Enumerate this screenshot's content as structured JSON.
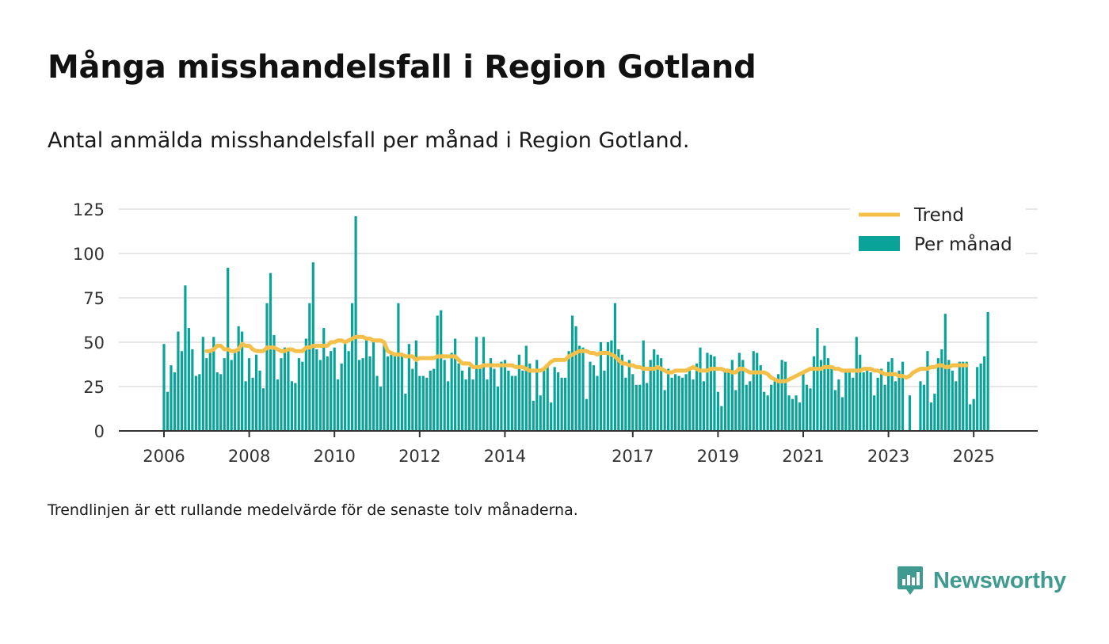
{
  "title": "Många misshandelsfall i Region Gotland",
  "subtitle": "Antal anmälda misshandelsfall per månad i Region Gotland.",
  "note": "Trendlinjen är ett rullande medelvärde för de senaste tolv månaderna.",
  "brand": "Newsworthy",
  "colors": {
    "bars": "#0aa39a",
    "trend": "#f5c04a",
    "axis": "#333333",
    "grid": "#dddddd"
  },
  "chart_data": {
    "type": "bar",
    "legend_position": "top-right",
    "grid": true,
    "ylim": [
      0,
      125
    ],
    "y_ticks": [
      "0",
      "25",
      "50",
      "75",
      "100",
      "125"
    ],
    "x_ticks": [
      "2006",
      "2008",
      "2010",
      "2012",
      "2014",
      "2017",
      "2019",
      "2021",
      "2023",
      "2025"
    ],
    "start_month": "2006-01",
    "series": [
      {
        "name": "Per månad",
        "kind": "bar",
        "values": [
          49,
          22,
          37,
          33,
          56,
          45,
          82,
          58,
          46,
          31,
          32,
          53,
          41,
          46,
          53,
          33,
          32,
          41,
          92,
          40,
          44,
          59,
          56,
          28,
          41,
          30,
          43,
          34,
          24,
          72,
          89,
          54,
          29,
          41,
          47,
          45,
          28,
          27,
          41,
          39,
          52,
          72,
          95,
          46,
          40,
          58,
          42,
          45,
          47,
          29,
          38,
          49,
          45,
          72,
          121,
          40,
          41,
          52,
          42,
          52,
          31,
          25,
          49,
          42,
          44,
          44,
          72,
          44,
          21,
          49,
          35,
          51,
          31,
          31,
          30,
          34,
          35,
          65,
          68,
          40,
          28,
          44,
          52,
          38,
          34,
          29,
          36,
          29,
          53,
          36,
          53,
          29,
          41,
          35,
          25,
          39,
          40,
          34,
          31,
          31,
          43,
          34,
          48,
          38,
          17,
          40,
          20,
          34,
          37,
          16,
          36,
          33,
          30,
          30,
          45,
          65,
          59,
          48,
          47,
          18,
          39,
          37,
          31,
          50,
          34,
          50,
          51,
          72,
          46,
          43,
          30,
          40,
          32,
          26,
          26,
          51,
          27,
          40,
          46,
          43,
          41,
          23,
          35,
          30,
          32,
          31,
          30,
          32,
          36,
          29,
          38,
          47,
          28,
          44,
          43,
          42,
          22,
          14,
          34,
          35,
          40,
          23,
          44,
          40,
          26,
          28,
          45,
          44,
          37,
          22,
          20,
          26,
          28,
          32,
          40,
          39,
          20,
          18,
          20,
          16,
          33,
          26,
          24,
          42,
          58,
          40,
          48,
          41,
          37,
          23,
          29,
          19,
          34,
          33,
          30,
          53,
          43,
          33,
          36,
          33,
          20,
          30,
          35,
          26,
          39,
          41,
          28,
          34,
          39,
          0,
          20,
          0,
          0,
          28,
          26,
          45,
          16,
          21,
          41,
          46,
          66,
          40,
          34,
          28,
          39,
          39,
          39,
          15,
          18,
          36,
          38,
          42,
          67
        ]
      },
      {
        "name": "Trend",
        "kind": "line",
        "start_month": "2007-01",
        "values": [
          45,
          45,
          46,
          48,
          48,
          46,
          46,
          45,
          45,
          46,
          49,
          48,
          48,
          46,
          45,
          45,
          45,
          47,
          47,
          47,
          46,
          45,
          45,
          46,
          46,
          45,
          45,
          45,
          47,
          47,
          48,
          48,
          48,
          48,
          48,
          50,
          50,
          51,
          51,
          50,
          51,
          52,
          53,
          53,
          53,
          52,
          52,
          51,
          51,
          51,
          50,
          45,
          44,
          43,
          43,
          43,
          42,
          42,
          42,
          40,
          41,
          41,
          41,
          41,
          41,
          42,
          42,
          42,
          42,
          42,
          42,
          40,
          38,
          38,
          38,
          36,
          36,
          36,
          37,
          37,
          37,
          37,
          37,
          37,
          37,
          37,
          37,
          36,
          36,
          36,
          35,
          34,
          34,
          34,
          34,
          35,
          37,
          39,
          40,
          40,
          40,
          40,
          42,
          43,
          44,
          45,
          45,
          45,
          44,
          44,
          43,
          44,
          44,
          44,
          43,
          42,
          40,
          38,
          38,
          37,
          37,
          36,
          36,
          35,
          35,
          35,
          35,
          36,
          35,
          34,
          33,
          33,
          34,
          34,
          34,
          34,
          35,
          36,
          35,
          34,
          34,
          34,
          35,
          35,
          35,
          35,
          34,
          34,
          33,
          33,
          35,
          35,
          34,
          33,
          33,
          33,
          33,
          33,
          32,
          30,
          29,
          28,
          28,
          28,
          29,
          30,
          31,
          32,
          33,
          34,
          35,
          35,
          35,
          35,
          36,
          36,
          36,
          35,
          35,
          34,
          34,
          34,
          34,
          34,
          34,
          35,
          35,
          35,
          34,
          34,
          33,
          32,
          32,
          32,
          32,
          31,
          31,
          30,
          31,
          33,
          34,
          35,
          35,
          35,
          36,
          36,
          37,
          37,
          36,
          36,
          37,
          37,
          37,
          37,
          37
        ]
      }
    ]
  }
}
